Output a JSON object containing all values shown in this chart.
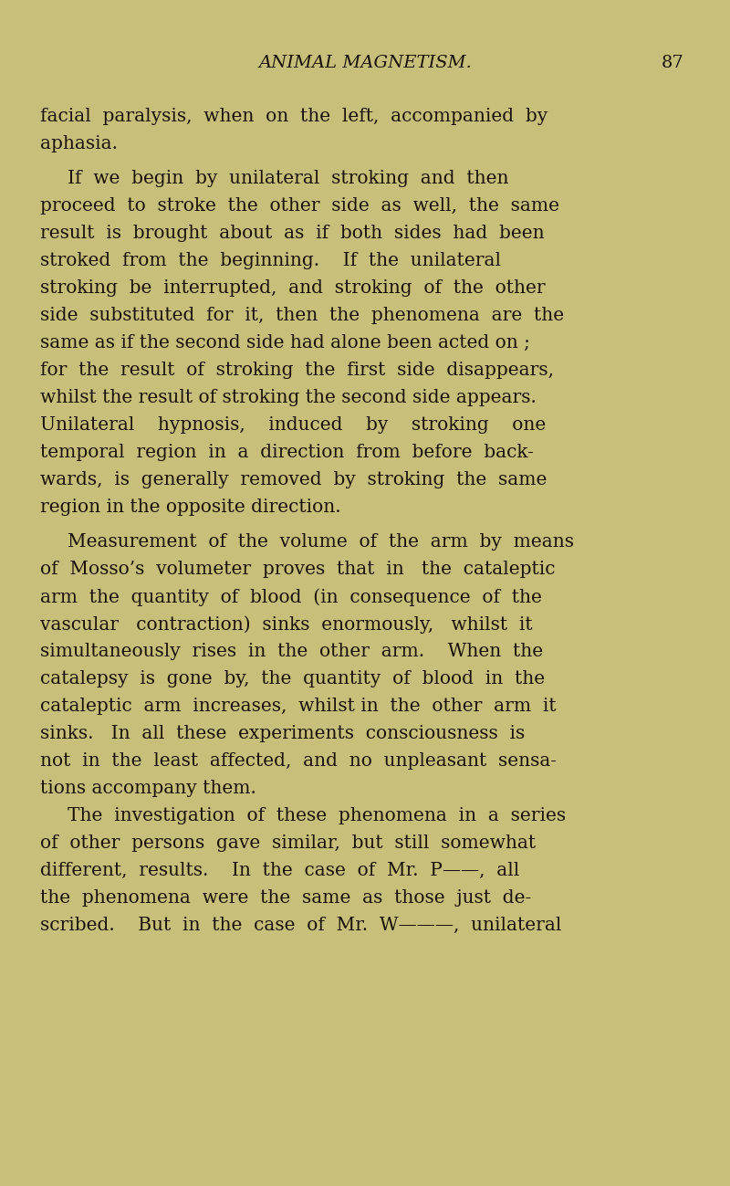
{
  "background_color": "#c8c07a",
  "text_color": "#1a1008",
  "header_title": "ANIMAL MAGNETISM.",
  "header_page": "87",
  "fig_width": 8.0,
  "fig_height": 12.99,
  "dpi": 100,
  "paragraphs": [
    {
      "indent": false,
      "text": "facial paralysis, when on the left, accompanied by aphasia."
    },
    {
      "indent": true,
      "text": "If we begin by unilateral stroking and then proceed to stroke the other side as well, the same result is brought about as if both sides had been stroked from the beginning.  If the unilateral stroking be interrupted, and stroking of the other side substituted for it, then the phenomena are the same as if the second side had alone been acted on ; for the result of stroking the first side disappears, whilst the result of stroking the second side appears. Unilateral hypnosis, induced by stroking one temporal region in a direction from before back-wards, is generally removed by stroking the same region in the opposite direction."
    },
    {
      "indent": true,
      "text": "Measurement of the volume of the arm by means of Mosso’s volumeter proves that in the cataleptic arm the quantity of blood (in consequence of the vascular contraction) sinks enormously, whilst it simultaneously rises in the other arm.  When the catalepsy is gone by, the quantity of blood in the cataleptic arm increases, whilst in the other arm it sinks.  In all these experiments consciousness is not in the least affected, and no unpleasant sensa-tions accompany them."
    },
    {
      "indent": true,
      "text": "The investigation of these phenomena in a series of other persons gave similar, but still somewhat different, results.  In the case of Mr. P——, all the phenomena were the same as those just de-scribed.  But in the case of Mr. W———, unilateral"
    }
  ]
}
